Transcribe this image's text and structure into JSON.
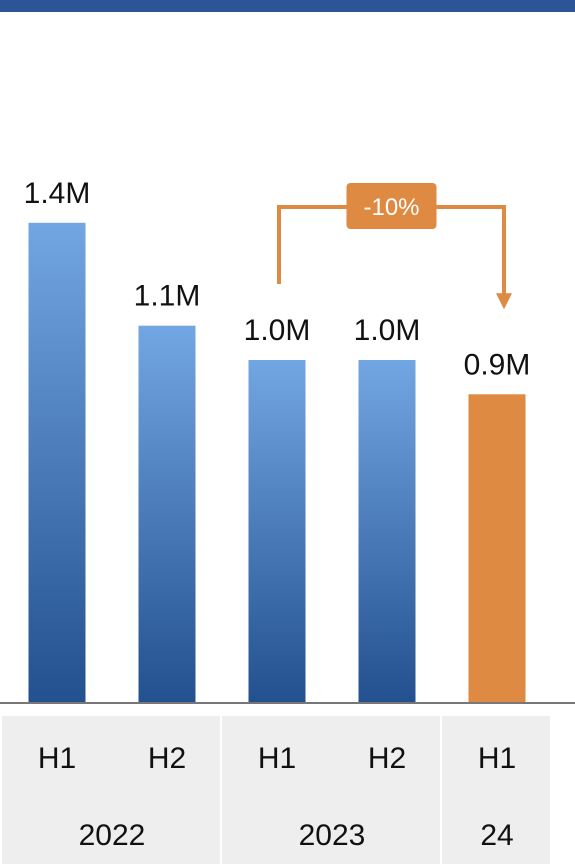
{
  "colors": {
    "top_rule": "#2c5597",
    "bar_gradient_top": "#72a6e2",
    "bar_gradient_bottom": "#23508f",
    "highlight": "#de8a42",
    "label_band": "#eeeeee",
    "baseline": "#777777"
  },
  "chart_data": {
    "type": "bar",
    "categories": [
      "H1",
      "H2",
      "H1",
      "H2",
      "H1"
    ],
    "category_groups": [
      {
        "label": "2022",
        "span": 2
      },
      {
        "label": "2023",
        "span": 2
      },
      {
        "label": "24",
        "span": 1
      }
    ],
    "values": [
      1.4,
      1.1,
      1.0,
      1.0,
      0.9
    ],
    "value_labels": [
      "1.4M",
      "1.1M",
      "1.0M",
      "1.0M",
      "0.9M"
    ],
    "highlight_index": 4,
    "ylim": [
      0,
      1.6
    ],
    "callout": {
      "label": "-10%",
      "from_index": 2,
      "to_index": 4
    }
  }
}
